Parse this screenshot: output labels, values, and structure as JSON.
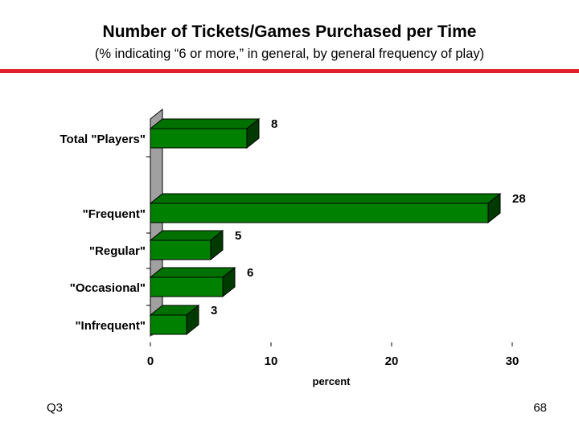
{
  "slide": {
    "title": "Number of Tickets/Games Purchased per Time",
    "subtitle": "(% indicating “6 or more,” in general, by general frequency of play)",
    "footer_left": "Q3",
    "page_number": "68",
    "rule_color": "#e0202a"
  },
  "chart_data": {
    "type": "bar",
    "orientation": "horizontal",
    "style": "3d",
    "categories": [
      "Total \"Players\"",
      "\"Frequent\"",
      "\"Regular\"",
      "\"Occasional\"",
      "\"Infrequent\""
    ],
    "values": [
      8,
      28,
      5,
      6,
      3
    ],
    "xlabel": "percent",
    "ylabel": "",
    "xlim": [
      0,
      30
    ],
    "xticks": [
      0,
      10,
      20,
      30
    ],
    "grid": false,
    "legend": "none",
    "bar_color": "#008000",
    "wall_color": "#a0a0a0"
  }
}
